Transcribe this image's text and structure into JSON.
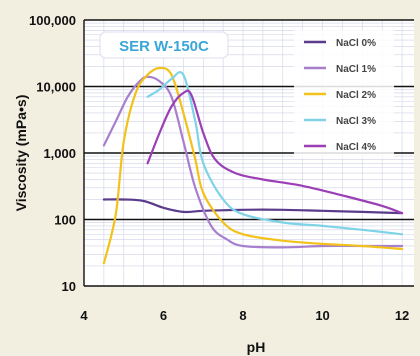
{
  "chart_data": {
    "type": "line",
    "title": "",
    "badge": "SER W-150C",
    "xlabel": "pH",
    "ylabel": "Viscosity (mPa•s)",
    "xlim": [
      4,
      12.3
    ],
    "ylim": [
      10,
      100000
    ],
    "yscale": "log",
    "xticks": [
      4,
      6,
      8,
      10,
      12
    ],
    "xtick_labels": [
      "4",
      "6",
      "8",
      "10",
      "12"
    ],
    "yticks": [
      10,
      100,
      1000,
      10000,
      100000
    ],
    "ytick_labels": [
      "10",
      "100",
      "1,000",
      "10,000",
      "100,000"
    ],
    "legend_position": "top-right",
    "grid": true,
    "series": [
      {
        "name": "NaCl 0%",
        "color": "#5a3b8c",
        "points": [
          [
            4.5,
            200
          ],
          [
            5.0,
            200
          ],
          [
            5.5,
            190
          ],
          [
            6.0,
            150
          ],
          [
            6.5,
            130
          ],
          [
            7.0,
            135
          ],
          [
            8.0,
            140
          ],
          [
            9.0,
            140
          ],
          [
            10.0,
            135
          ],
          [
            11.0,
            130
          ],
          [
            12.0,
            125
          ]
        ]
      },
      {
        "name": "NaCl 1%",
        "color": "#a77fcc",
        "points": [
          [
            4.5,
            1300
          ],
          [
            4.8,
            3000
          ],
          [
            5.1,
            7000
          ],
          [
            5.4,
            12000
          ],
          [
            5.6,
            14000
          ],
          [
            5.9,
            12000
          ],
          [
            6.2,
            7000
          ],
          [
            6.5,
            1500
          ],
          [
            6.8,
            300
          ],
          [
            7.2,
            80
          ],
          [
            7.6,
            50
          ],
          [
            8.0,
            40
          ],
          [
            9.0,
            38
          ],
          [
            10.0,
            40
          ],
          [
            11.0,
            40
          ],
          [
            12.0,
            40
          ]
        ]
      },
      {
        "name": "NaCl 2%",
        "color": "#f2c21a",
        "points": [
          [
            4.5,
            22
          ],
          [
            4.8,
            120
          ],
          [
            5.0,
            1500
          ],
          [
            5.3,
            8000
          ],
          [
            5.6,
            15000
          ],
          [
            5.9,
            19000
          ],
          [
            6.2,
            15000
          ],
          [
            6.5,
            4000
          ],
          [
            6.8,
            800
          ],
          [
            7.0,
            250
          ],
          [
            7.5,
            90
          ],
          [
            8.0,
            60
          ],
          [
            9.0,
            48
          ],
          [
            10.0,
            43
          ],
          [
            11.0,
            40
          ],
          [
            12.0,
            36
          ]
        ]
      },
      {
        "name": "NaCl 3%",
        "color": "#7fd3e6",
        "points": [
          [
            5.6,
            7000
          ],
          [
            5.9,
            9000
          ],
          [
            6.2,
            13000
          ],
          [
            6.5,
            15000
          ],
          [
            6.8,
            3000
          ],
          [
            7.0,
            700
          ],
          [
            7.5,
            200
          ],
          [
            8.0,
            120
          ],
          [
            9.0,
            90
          ],
          [
            10.0,
            80
          ],
          [
            11.0,
            70
          ],
          [
            12.0,
            60
          ]
        ]
      },
      {
        "name": "NaCl 4%",
        "color": "#9b3fb5",
        "points": [
          [
            5.6,
            700
          ],
          [
            5.9,
            2000
          ],
          [
            6.2,
            5000
          ],
          [
            6.5,
            8000
          ],
          [
            6.7,
            7500
          ],
          [
            7.0,
            2000
          ],
          [
            7.3,
            800
          ],
          [
            7.8,
            500
          ],
          [
            8.5,
            400
          ],
          [
            9.5,
            320
          ],
          [
            10.5,
            230
          ],
          [
            11.5,
            160
          ],
          [
            12.0,
            125
          ]
        ]
      }
    ]
  }
}
